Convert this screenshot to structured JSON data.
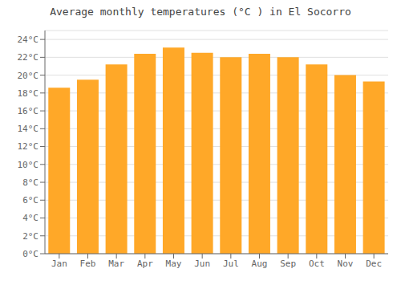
{
  "chart_data": {
    "type": "bar",
    "title": "Average monthly temperatures (°C ) in El Socorro",
    "categories": [
      "Jan",
      "Feb",
      "Mar",
      "Apr",
      "May",
      "Jun",
      "Jul",
      "Aug",
      "Sep",
      "Oct",
      "Nov",
      "Dec"
    ],
    "values": [
      18.6,
      19.5,
      21.2,
      22.4,
      23.1,
      22.5,
      22.0,
      22.4,
      22.0,
      21.2,
      20.0,
      19.3
    ],
    "color": "#FFA828",
    "ylim": [
      0,
      25
    ],
    "yticks": [
      {
        "value": 0,
        "label": "0°C"
      },
      {
        "value": 2,
        "label": "2°C"
      },
      {
        "value": 4,
        "label": "4°C"
      },
      {
        "value": 6,
        "label": "6°C"
      },
      {
        "value": 8,
        "label": "8°C"
      },
      {
        "value": 10,
        "label": "10°C"
      },
      {
        "value": 12,
        "label": "12°C"
      },
      {
        "value": 14,
        "label": "14°C"
      },
      {
        "value": 16,
        "label": "16°C"
      },
      {
        "value": 18,
        "label": "18°C"
      },
      {
        "value": 20,
        "label": "20°C"
      },
      {
        "value": 22,
        "label": "22°C"
      },
      {
        "value": 24,
        "label": "24°C"
      }
    ],
    "grid": true
  }
}
